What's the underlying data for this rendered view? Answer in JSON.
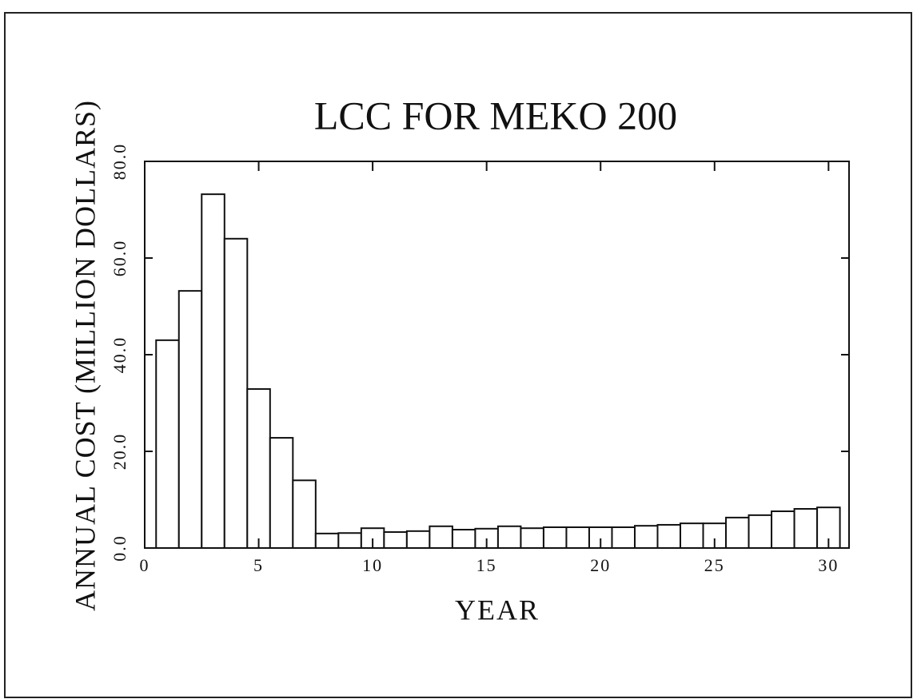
{
  "chart_data": {
    "type": "bar",
    "title": "LCC FOR MEKO 200",
    "xlabel": "YEAR",
    "ylabel": "ANNUAL COST (MILLION DOLLARS)",
    "x": [
      1,
      2,
      3,
      4,
      5,
      6,
      7,
      8,
      9,
      10,
      11,
      12,
      13,
      14,
      15,
      16,
      17,
      18,
      19,
      20,
      21,
      22,
      23,
      24,
      25,
      26,
      27,
      28,
      29,
      30
    ],
    "values": [
      43,
      53.2,
      73.2,
      64,
      32.9,
      22.8,
      14,
      3,
      3.1,
      4.1,
      3.3,
      3.5,
      4.5,
      3.8,
      4,
      4.5,
      4.1,
      4.3,
      4.3,
      4.3,
      4.3,
      4.6,
      4.8,
      5.1,
      5.1,
      6.3,
      6.8,
      7.6,
      8.1,
      8.4
    ],
    "color": "#ffffff",
    "xlim": [
      0,
      30.9
    ],
    "xticks": [
      0,
      5,
      10,
      15,
      20,
      25,
      30
    ],
    "ylim": [
      0,
      80
    ],
    "yticks": [
      {
        "value": 0,
        "label": "0.0"
      },
      {
        "value": 20,
        "label": "20.0"
      },
      {
        "value": 40,
        "label": "40.0"
      },
      {
        "value": 60,
        "label": "60.0"
      },
      {
        "value": 80,
        "label": "80.0"
      }
    ],
    "grid": false
  }
}
